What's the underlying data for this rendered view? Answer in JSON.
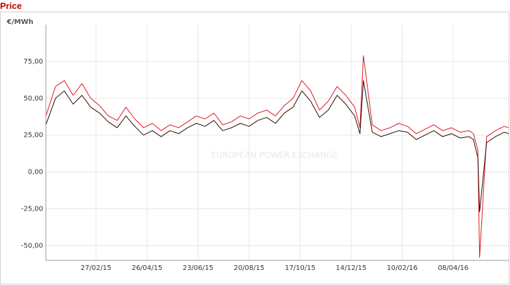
{
  "page": {
    "title": "Price"
  },
  "chart_data": {
    "type": "line",
    "title": "Price",
    "ylabel": "€/MWh",
    "xlabel": "",
    "ylim": [
      -60,
      100
    ],
    "y_ticks": [
      75,
      50,
      25,
      0,
      -25,
      -50
    ],
    "y_tick_labels": [
      "75,00",
      "50,00",
      "25,00",
      "0,00",
      "-25,00",
      "-50,00"
    ],
    "x_range": [
      "2015-01-01",
      "2016-06-10"
    ],
    "x_ticks": [
      "2015-02-27",
      "2015-04-26",
      "2015-06-23",
      "2015-08-20",
      "2015-10-17",
      "2015-12-14",
      "2016-02-10",
      "2016-04-08"
    ],
    "x_tick_labels": [
      "27/02/15",
      "26/04/15",
      "23/06/15",
      "20/08/15",
      "17/10/15",
      "14/12/15",
      "10/02/16",
      "08/04/16"
    ],
    "grid": true,
    "watermark": "EUROPEAN POWER EXCHANGE",
    "colors": {
      "series_red": "#e0141b",
      "series_dark": "#2a0505",
      "title": "#c00000",
      "grid": "#e6e6e6"
    },
    "series": [
      {
        "color": "#e0141b",
        "x": [
          "2015-01-01",
          "2015-01-12",
          "2015-01-22",
          "2015-02-01",
          "2015-02-11",
          "2015-02-21",
          "2015-03-03",
          "2015-03-13",
          "2015-03-23",
          "2015-04-02",
          "2015-04-12",
          "2015-04-22",
          "2015-05-02",
          "2015-05-12",
          "2015-05-22",
          "2015-06-01",
          "2015-06-11",
          "2015-06-21",
          "2015-07-01",
          "2015-07-11",
          "2015-07-21",
          "2015-07-31",
          "2015-08-10",
          "2015-08-20",
          "2015-08-30",
          "2015-09-09",
          "2015-09-19",
          "2015-09-29",
          "2015-10-09",
          "2015-10-19",
          "2015-10-29",
          "2015-11-08",
          "2015-11-18",
          "2015-11-28",
          "2015-12-08",
          "2015-12-18",
          "2015-12-24",
          "2015-12-28",
          "2016-01-07",
          "2016-01-17",
          "2016-01-27",
          "2016-02-06",
          "2016-02-16",
          "2016-02-26",
          "2016-03-07",
          "2016-03-17",
          "2016-03-27",
          "2016-04-06",
          "2016-04-16",
          "2016-04-26",
          "2016-05-01",
          "2016-05-06",
          "2016-05-08",
          "2016-05-16",
          "2016-05-26",
          "2016-06-05",
          "2016-06-10"
        ],
        "values": [
          38,
          58,
          62,
          52,
          60,
          50,
          45,
          38,
          35,
          44,
          36,
          30,
          33,
          28,
          32,
          30,
          34,
          38,
          36,
          40,
          32,
          34,
          38,
          36,
          40,
          42,
          38,
          45,
          50,
          62,
          55,
          42,
          48,
          58,
          52,
          44,
          30,
          79,
          32,
          28,
          30,
          33,
          31,
          26,
          29,
          32,
          28,
          30,
          27,
          28,
          26,
          15,
          -58,
          24,
          28,
          31,
          30
        ]
      },
      {
        "color": "#2a0505",
        "x": [
          "2015-01-01",
          "2015-01-12",
          "2015-01-22",
          "2015-02-01",
          "2015-02-11",
          "2015-02-21",
          "2015-03-03",
          "2015-03-13",
          "2015-03-23",
          "2015-04-02",
          "2015-04-12",
          "2015-04-22",
          "2015-05-02",
          "2015-05-12",
          "2015-05-22",
          "2015-06-01",
          "2015-06-11",
          "2015-06-21",
          "2015-07-01",
          "2015-07-11",
          "2015-07-21",
          "2015-07-31",
          "2015-08-10",
          "2015-08-20",
          "2015-08-30",
          "2015-09-09",
          "2015-09-19",
          "2015-09-29",
          "2015-10-09",
          "2015-10-19",
          "2015-10-29",
          "2015-11-08",
          "2015-11-18",
          "2015-11-28",
          "2015-12-08",
          "2015-12-18",
          "2015-12-24",
          "2015-12-28",
          "2016-01-07",
          "2016-01-17",
          "2016-01-27",
          "2016-02-06",
          "2016-02-16",
          "2016-02-26",
          "2016-03-07",
          "2016-03-17",
          "2016-03-27",
          "2016-04-06",
          "2016-04-16",
          "2016-04-26",
          "2016-05-01",
          "2016-05-06",
          "2016-05-08",
          "2016-05-16",
          "2016-05-26",
          "2016-06-05",
          "2016-06-10"
        ],
        "values": [
          32,
          50,
          55,
          46,
          52,
          44,
          40,
          34,
          30,
          38,
          31,
          25,
          28,
          24,
          28,
          26,
          30,
          33,
          31,
          35,
          28,
          30,
          33,
          31,
          35,
          37,
          33,
          40,
          44,
          55,
          48,
          37,
          42,
          52,
          46,
          38,
          26,
          62,
          27,
          24,
          26,
          28,
          27,
          22,
          25,
          28,
          24,
          26,
          23,
          24,
          22,
          10,
          -27,
          20,
          24,
          27,
          26
        ]
      }
    ]
  }
}
